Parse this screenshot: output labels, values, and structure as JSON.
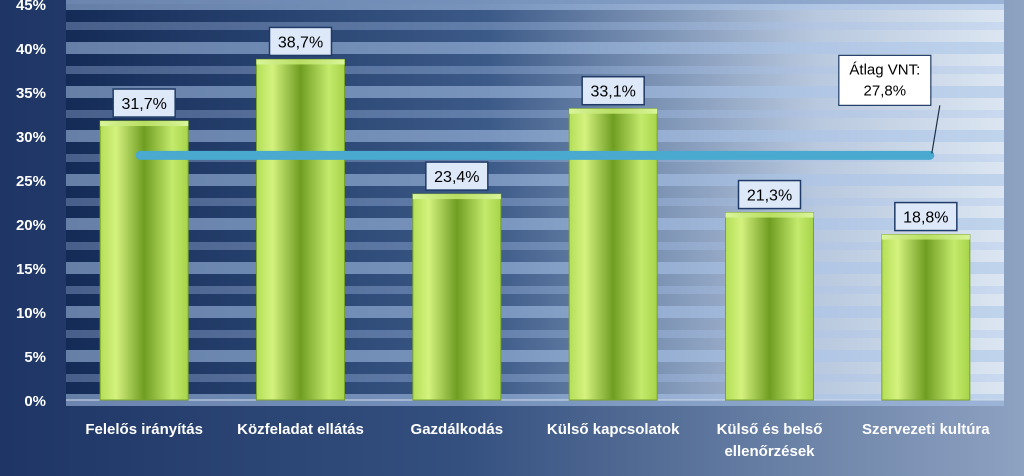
{
  "chart_data": {
    "type": "bar",
    "categories": [
      [
        "Felelős irányítás"
      ],
      [
        "Közfeladat ellátás"
      ],
      [
        "Gazdálkodás"
      ],
      [
        "Külső kapcsolatok"
      ],
      [
        "Külső és belső",
        "ellenőrzések"
      ],
      [
        "Szervezeti kultúra"
      ]
    ],
    "values": [
      31.7,
      38.7,
      23.4,
      33.1,
      21.3,
      18.8
    ],
    "data_labels": [
      "31,7%",
      "38,7%",
      "23,4%",
      "33,1%",
      "21,3%",
      "18,8%"
    ],
    "yticks": [
      "0%",
      "5%",
      "10%",
      "15%",
      "20%",
      "25%",
      "30%",
      "35%",
      "40%",
      "45%"
    ],
    "ylim": [
      0,
      45
    ],
    "ystep": 5,
    "average": {
      "value": 27.8,
      "label_lines": [
        "Átlag VNT:",
        "27,8%"
      ]
    },
    "grid": true,
    "colors": {
      "bar_light": "#c9ec6e",
      "bar_mid": "#9ccc3c",
      "bar_dark": "#5f8c1a",
      "average_line": "#49a9cf",
      "label_fill": "#dde8f8",
      "label_border": "#1f3b66",
      "axis_text": "#ffffff"
    }
  }
}
